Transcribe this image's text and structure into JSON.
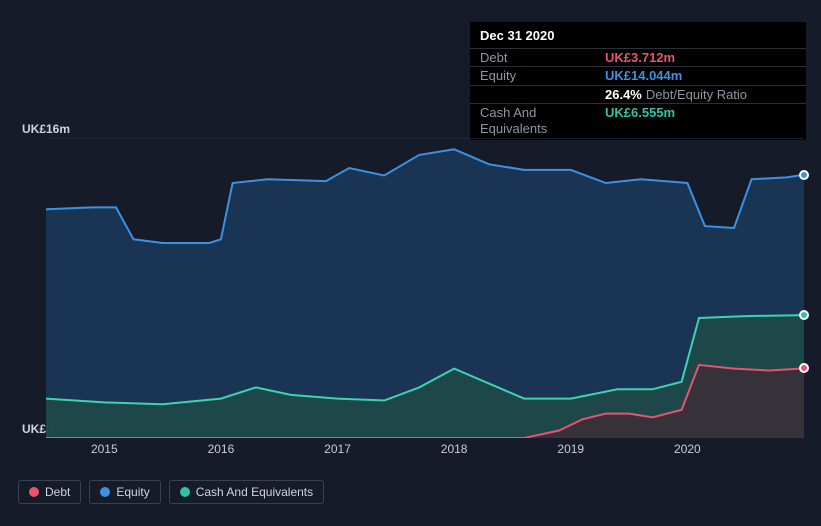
{
  "tooltip": {
    "date": "Dec 31 2020",
    "rows": [
      {
        "label": "Debt",
        "value": "UK£3.712m",
        "color": "#e8536f"
      },
      {
        "label": "Equity",
        "value": "UK£14.044m",
        "color": "#3b92e4"
      },
      {
        "label": "",
        "value": "26.4%",
        "unit": "Debt/Equity Ratio",
        "color": "#ffffff"
      },
      {
        "label": "Cash And Equivalents",
        "value": "UK£6.555m",
        "color": "#2fc2a4"
      }
    ]
  },
  "chart": {
    "type": "area",
    "background_color": "#151b29",
    "plot_background": "#151b29",
    "grid_color": "#2a3142",
    "y_axis": {
      "top_label": "UK£16m",
      "bottom_label": "UK£0",
      "min": 0,
      "max": 16
    },
    "x_axis": {
      "min": 2014.5,
      "max": 2021.0,
      "ticks": [
        2015,
        2016,
        2017,
        2018,
        2019,
        2020
      ]
    },
    "series": [
      {
        "name": "Equity",
        "stroke": "#3b92e4",
        "fill": "#1b3a5a",
        "fill_opacity": 0.85,
        "points": [
          [
            2014.5,
            12.2
          ],
          [
            2014.9,
            12.3
          ],
          [
            2015.1,
            12.3
          ],
          [
            2015.25,
            10.6
          ],
          [
            2015.5,
            10.4
          ],
          [
            2015.9,
            10.4
          ],
          [
            2016.0,
            10.6
          ],
          [
            2016.1,
            13.6
          ],
          [
            2016.4,
            13.8
          ],
          [
            2016.9,
            13.7
          ],
          [
            2017.1,
            14.4
          ],
          [
            2017.4,
            14.0
          ],
          [
            2017.7,
            15.1
          ],
          [
            2018.0,
            15.4
          ],
          [
            2018.3,
            14.6
          ],
          [
            2018.6,
            14.3
          ],
          [
            2019.0,
            14.3
          ],
          [
            2019.3,
            13.6
          ],
          [
            2019.6,
            13.8
          ],
          [
            2020.0,
            13.6
          ],
          [
            2020.15,
            11.3
          ],
          [
            2020.4,
            11.2
          ],
          [
            2020.55,
            13.8
          ],
          [
            2020.85,
            13.9
          ],
          [
            2021.0,
            14.044
          ]
        ]
      },
      {
        "name": "Cash And Equivalents",
        "stroke": "#3ed2b3",
        "fill": "#1e4a48",
        "fill_opacity": 0.85,
        "points": [
          [
            2014.5,
            2.1
          ],
          [
            2015.0,
            1.9
          ],
          [
            2015.5,
            1.8
          ],
          [
            2016.0,
            2.1
          ],
          [
            2016.3,
            2.7
          ],
          [
            2016.6,
            2.3
          ],
          [
            2017.0,
            2.1
          ],
          [
            2017.4,
            2.0
          ],
          [
            2017.7,
            2.7
          ],
          [
            2018.0,
            3.7
          ],
          [
            2018.3,
            2.9
          ],
          [
            2018.6,
            2.1
          ],
          [
            2019.0,
            2.1
          ],
          [
            2019.4,
            2.6
          ],
          [
            2019.7,
            2.6
          ],
          [
            2019.95,
            3.0
          ],
          [
            2020.1,
            6.4
          ],
          [
            2020.5,
            6.5
          ],
          [
            2021.0,
            6.555
          ]
        ]
      },
      {
        "name": "Debt",
        "stroke": "#e8536f",
        "fill": "#4a2430",
        "fill_opacity": 0.6,
        "points": [
          [
            2014.5,
            0.0
          ],
          [
            2018.6,
            0.0
          ],
          [
            2018.9,
            0.4
          ],
          [
            2019.1,
            1.0
          ],
          [
            2019.3,
            1.3
          ],
          [
            2019.5,
            1.3
          ],
          [
            2019.7,
            1.1
          ],
          [
            2019.95,
            1.5
          ],
          [
            2020.1,
            3.9
          ],
          [
            2020.4,
            3.7
          ],
          [
            2020.7,
            3.6
          ],
          [
            2021.0,
            3.712
          ]
        ]
      }
    ],
    "endpoint_markers": [
      {
        "series": "Equity",
        "x": 2021.0,
        "y": 14.044,
        "fill": "#3b92e4"
      },
      {
        "series": "Cash",
        "x": 2021.0,
        "y": 6.555,
        "fill": "#2fc2a4"
      },
      {
        "series": "Debt",
        "x": 2021.0,
        "y": 3.712,
        "fill": "#e8536f"
      }
    ]
  },
  "legend": [
    {
      "label": "Debt",
      "color": "#e8536f"
    },
    {
      "label": "Equity",
      "color": "#3b92e4"
    },
    {
      "label": "Cash And Equivalents",
      "color": "#2fc2a4"
    }
  ]
}
